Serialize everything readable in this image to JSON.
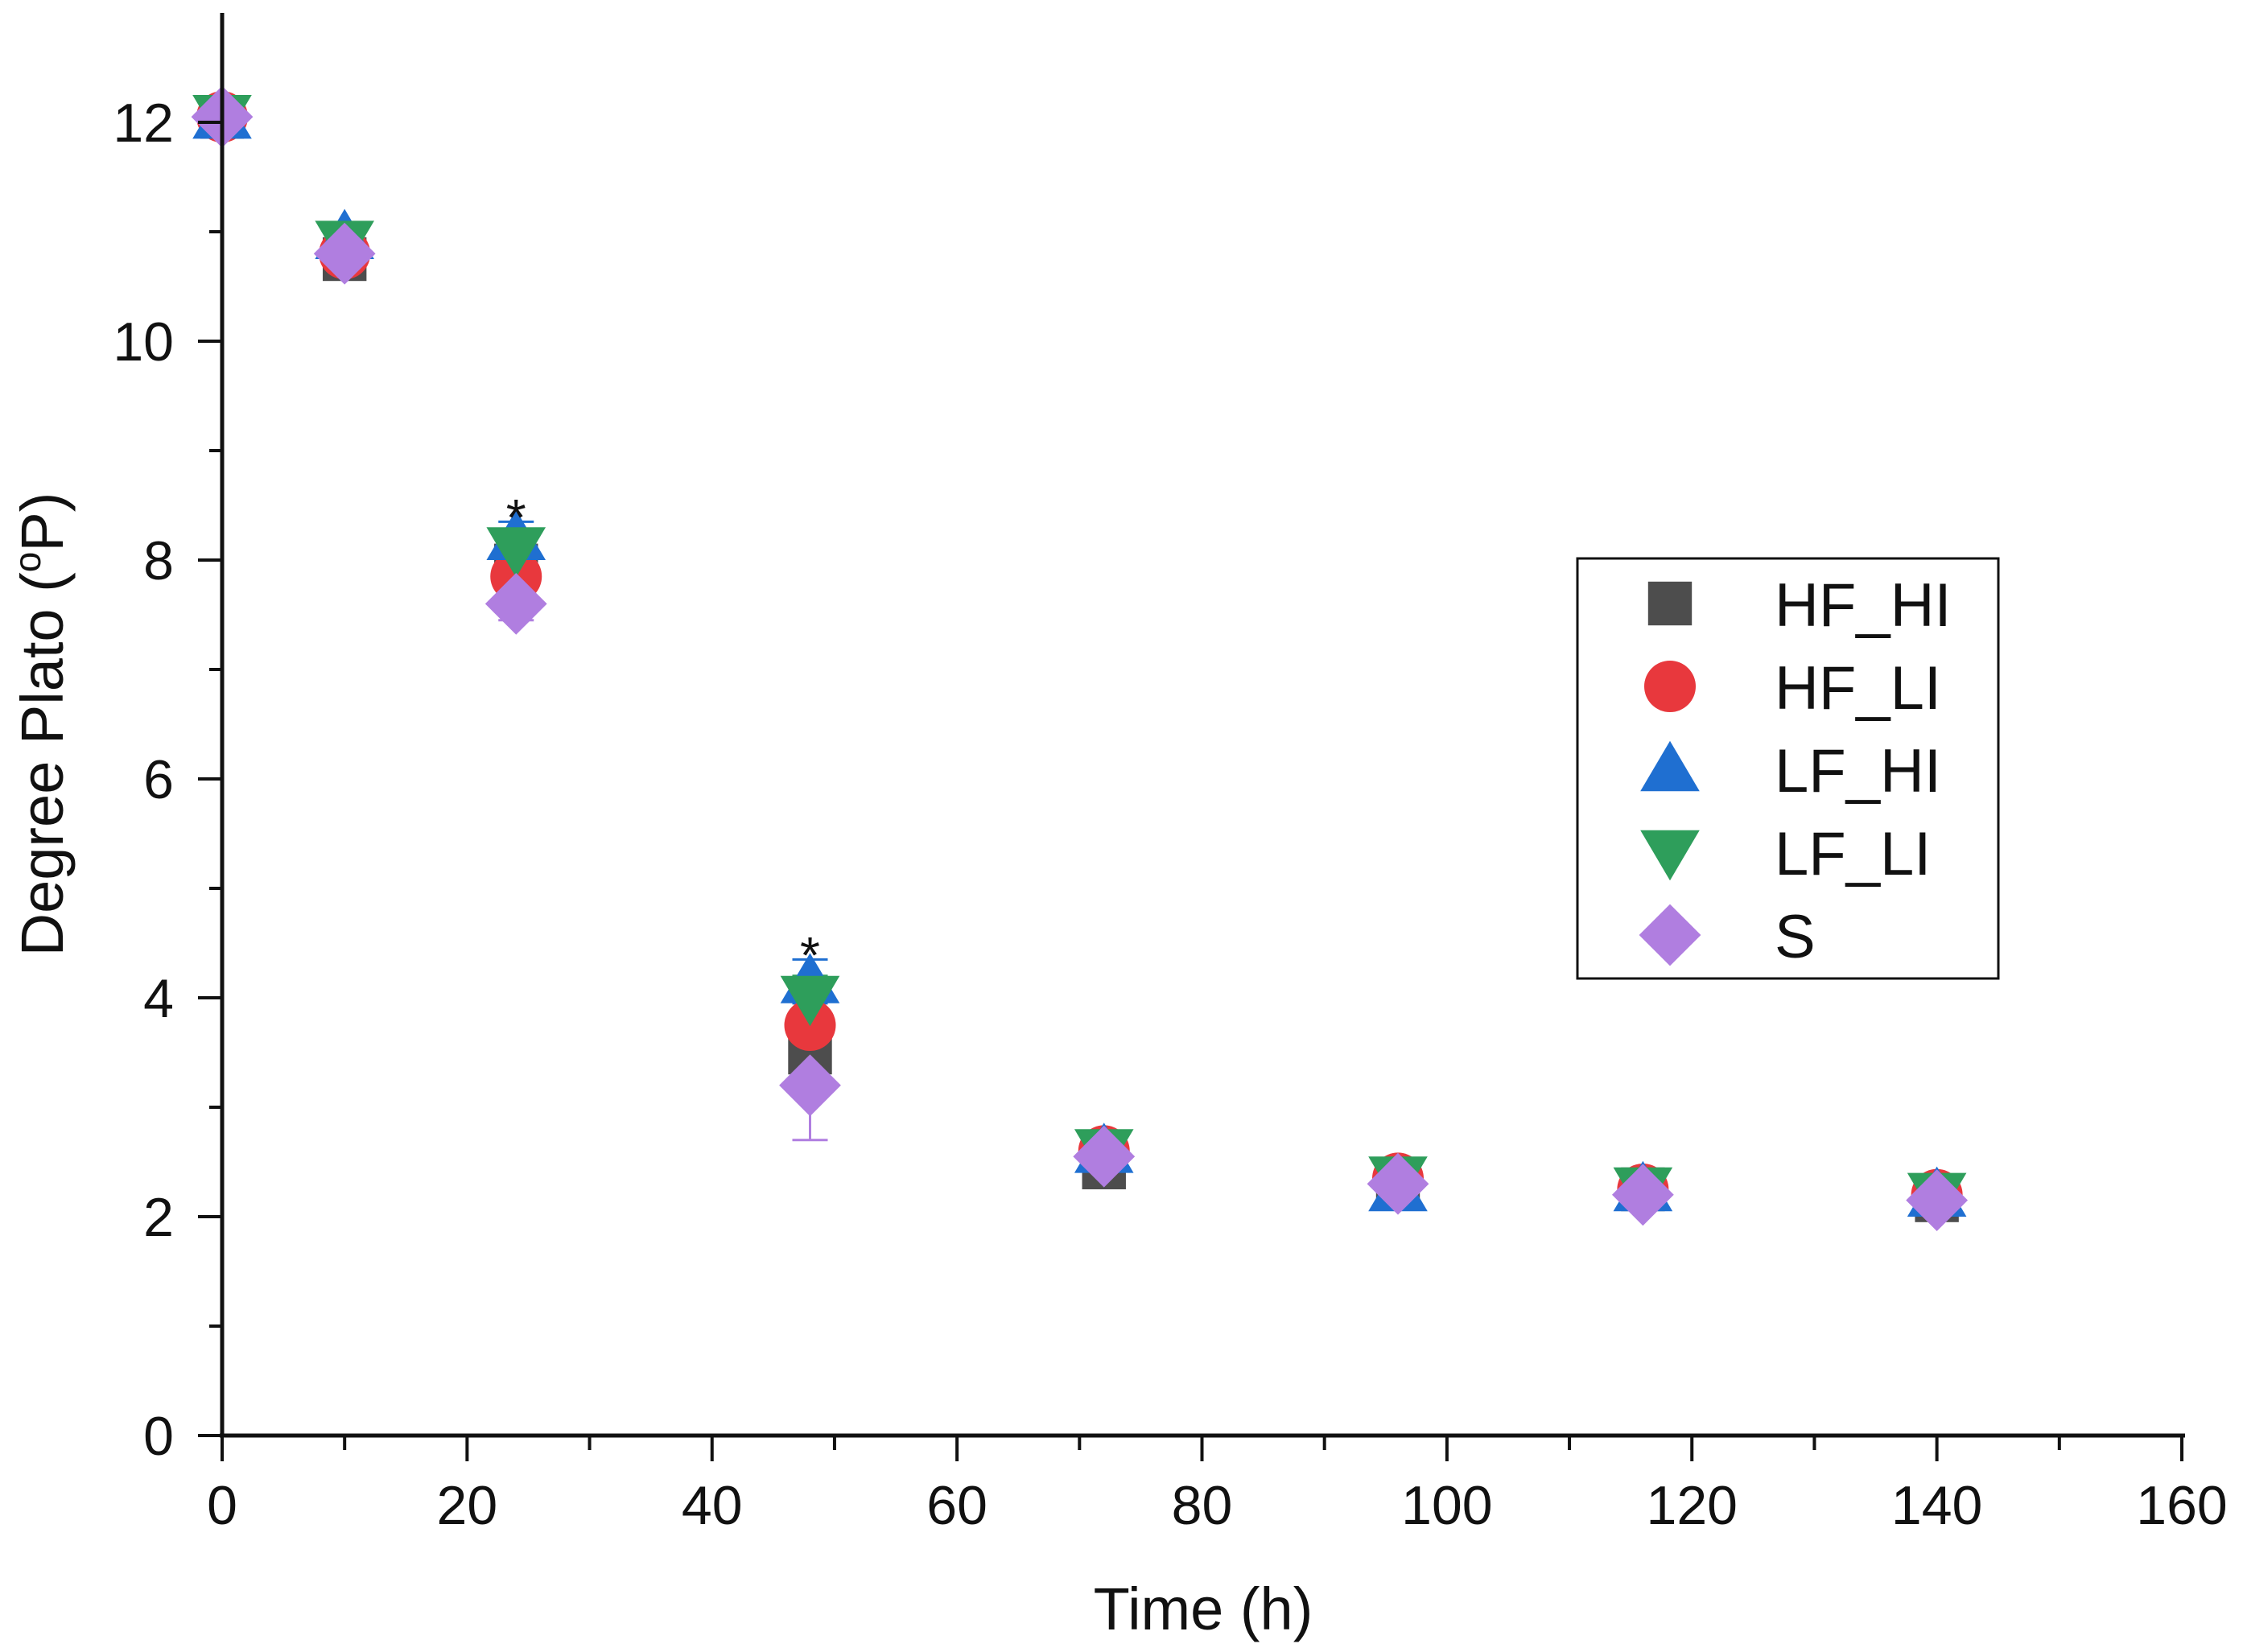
{
  "chart_data": {
    "type": "scatter",
    "title": "",
    "xlabel": "Time (h)",
    "ylabel_prefix": "Degree Plato (",
    "ylabel_sup": "o",
    "ylabel_suffix": "P)",
    "xlim": [
      0,
      160
    ],
    "ylim": [
      0,
      13
    ],
    "xticks": [
      0,
      20,
      40,
      60,
      80,
      100,
      120,
      140,
      160
    ],
    "yticks": [
      0,
      2,
      4,
      6,
      8,
      10,
      12
    ],
    "grid": false,
    "legend_position": "right-center",
    "x": [
      0,
      10,
      24,
      48,
      72,
      96,
      116,
      140
    ],
    "series": [
      {
        "name": "HF_HI",
        "marker": "square",
        "color": "#4d4d4d",
        "values": [
          12.05,
          10.75,
          7.95,
          3.5,
          2.45,
          2.3,
          2.25,
          2.15
        ],
        "errors": [
          0.05,
          0.1,
          0.15,
          0.25,
          0.1,
          0.08,
          0.08,
          0.05
        ]
      },
      {
        "name": "HF_LI",
        "marker": "circle",
        "color": "#e8383d",
        "values": [
          12.05,
          10.8,
          7.85,
          3.75,
          2.6,
          2.35,
          2.25,
          2.2
        ],
        "errors": [
          0.05,
          0.1,
          0.15,
          0.2,
          0.1,
          0.08,
          0.08,
          0.05
        ]
      },
      {
        "name": "LF_HI",
        "marker": "triangle-up",
        "color": "#1f6fd1",
        "values": [
          12.05,
          10.95,
          8.2,
          4.15,
          2.6,
          2.25,
          2.25,
          2.2
        ],
        "errors": [
          0.05,
          0.1,
          0.15,
          0.2,
          0.1,
          0.08,
          0.08,
          0.05
        ]
      },
      {
        "name": "LF_LI",
        "marker": "triangle-down",
        "color": "#2e9e5b",
        "values": [
          12.05,
          10.9,
          8.1,
          4.0,
          2.6,
          2.35,
          2.25,
          2.2
        ],
        "errors": [
          0.05,
          0.1,
          0.15,
          0.2,
          0.1,
          0.08,
          0.08,
          0.05
        ]
      },
      {
        "name": "S",
        "marker": "diamond",
        "color": "#b07ee0",
        "values": [
          12.05,
          10.8,
          7.6,
          3.2,
          2.55,
          2.3,
          2.2,
          2.15
        ],
        "errors": [
          0.05,
          0.1,
          0.15,
          0.5,
          0.1,
          0.08,
          0.08,
          0.05
        ]
      }
    ],
    "annotations": [
      {
        "text": "*",
        "x": 24,
        "y": 8.45
      },
      {
        "text": "*",
        "x": 48,
        "y": 4.45
      }
    ]
  }
}
